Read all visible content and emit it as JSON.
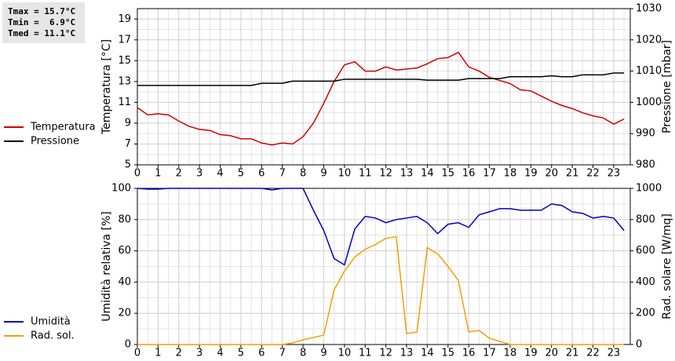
{
  "stats": [
    "Tmax = 15.7°C",
    "Tmin =  6.9°C",
    "Tmed = 11.1°C"
  ],
  "chart_data": [
    {
      "type": "line",
      "ylabel": "Temperatura [°C]",
      "y2label": "Pressione [mbar]",
      "legend": "left",
      "grid": true,
      "x": [
        0,
        0.5,
        1,
        1.5,
        2,
        2.5,
        3,
        3.5,
        4,
        4.5,
        5,
        5.5,
        6,
        6.5,
        7,
        7.5,
        8,
        8.5,
        9,
        9.5,
        10,
        10.5,
        11,
        11.5,
        12,
        12.5,
        13,
        13.5,
        14,
        14.5,
        15,
        15.5,
        16,
        16.5,
        17,
        17.5,
        18,
        18.5,
        19,
        19.5,
        20,
        20.5,
        21,
        21.5,
        22,
        22.5,
        23,
        23.5
      ],
      "xlim": [
        0,
        23.8
      ],
      "xticks": [
        0,
        1,
        2,
        3,
        4,
        5,
        6,
        7,
        8,
        9,
        10,
        11,
        12,
        13,
        14,
        15,
        16,
        17,
        18,
        19,
        20,
        21,
        22,
        23
      ],
      "x_minor_step": 0.5,
      "ylim": [
        5,
        20
      ],
      "yticks": [
        5,
        7,
        9,
        11,
        13,
        15,
        17,
        19
      ],
      "y_minor_step": 1,
      "y2lim": [
        980,
        1030
      ],
      "y2ticks": [
        980,
        990,
        1000,
        1010,
        1020,
        1030
      ],
      "series": [
        {
          "name": "Temperatura",
          "color": "#d40000",
          "values": [
            10.5,
            9.8,
            9.9,
            9.8,
            9.2,
            8.7,
            8.4,
            8.3,
            7.9,
            7.8,
            7.5,
            7.5,
            7.1,
            6.9,
            7.1,
            7.0,
            7.7,
            9.0,
            10.9,
            13.0,
            14.6,
            14.9,
            14.0,
            14.0,
            14.4,
            14.1,
            14.2,
            14.3,
            14.7,
            15.2,
            15.3,
            15.8,
            14.4,
            14.0,
            13.4,
            13.1,
            12.8,
            12.2,
            12.1,
            11.6,
            11.1,
            10.7,
            10.4,
            10.0,
            9.7,
            9.5,
            8.9,
            9.4
          ]
        },
        {
          "name": "Pressione",
          "color": "#000000",
          "axis": "y2",
          "values": [
            1005.4,
            1005.4,
            1005.4,
            1005.4,
            1005.4,
            1005.4,
            1005.4,
            1005.4,
            1005.4,
            1005.4,
            1005.4,
            1005.4,
            1006.1,
            1006.1,
            1006.1,
            1006.8,
            1006.8,
            1006.8,
            1006.8,
            1006.8,
            1007.4,
            1007.4,
            1007.4,
            1007.4,
            1007.4,
            1007.4,
            1007.4,
            1007.4,
            1007.1,
            1007.1,
            1007.1,
            1007.1,
            1007.6,
            1007.6,
            1007.6,
            1007.6,
            1008.2,
            1008.2,
            1008.2,
            1008.2,
            1008.5,
            1008.2,
            1008.2,
            1008.8,
            1008.8,
            1008.8,
            1009.4,
            1009.4
          ]
        }
      ]
    },
    {
      "type": "line",
      "ylabel": "Umidità relativa [%]",
      "y2label": "Rad. solare [W/mq]",
      "legend": "left",
      "grid": true,
      "x": [
        0,
        0.5,
        1,
        1.5,
        2,
        2.5,
        3,
        3.5,
        4,
        4.5,
        5,
        5.5,
        6,
        6.5,
        7,
        7.5,
        8,
        8.5,
        9,
        9.5,
        10,
        10.5,
        11,
        11.5,
        12,
        12.5,
        13,
        13.5,
        14,
        14.5,
        15,
        15.5,
        16,
        16.5,
        17,
        17.5,
        18,
        18.5,
        19,
        19.5,
        20,
        20.5,
        21,
        21.5,
        22,
        22.5,
        23,
        23.5
      ],
      "xlim": [
        0,
        23.8
      ],
      "xticks": [
        0,
        1,
        2,
        3,
        4,
        5,
        6,
        7,
        8,
        9,
        10,
        11,
        12,
        13,
        14,
        15,
        16,
        17,
        18,
        19,
        20,
        21,
        22,
        23
      ],
      "x_minor_step": 0.5,
      "ylim": [
        0,
        100
      ],
      "yticks": [
        0,
        20,
        40,
        60,
        80,
        100
      ],
      "y_minor_step": 10,
      "y2lim": [
        0,
        1000
      ],
      "y2ticks": [
        0,
        200,
        400,
        600,
        800,
        1000
      ],
      "series": [
        {
          "name": "Umidità",
          "color": "#0000c0",
          "values": [
            100,
            99.5,
            99.5,
            100,
            100,
            100,
            100,
            100,
            100,
            100,
            100,
            100,
            100,
            99,
            100,
            100,
            100,
            86,
            73,
            55,
            51,
            74,
            82,
            81,
            78,
            80,
            81,
            82,
            78,
            71,
            77,
            78,
            75,
            83,
            85,
            87,
            87,
            86,
            86,
            86,
            90,
            89,
            85,
            84,
            81,
            82,
            81,
            73
          ]
        },
        {
          "name": "Rad. sol.",
          "color": "#f0a000",
          "axis": "y2",
          "values": [
            0,
            0,
            0,
            0,
            0,
            0,
            0,
            0,
            0,
            0,
            0,
            0,
            0,
            0,
            0,
            10,
            30,
            45,
            60,
            350,
            470,
            560,
            610,
            640,
            680,
            690,
            70,
            80,
            620,
            580,
            500,
            410,
            80,
            90,
            40,
            20,
            0,
            0,
            0,
            0,
            0,
            0,
            0,
            0,
            0,
            0,
            0,
            0
          ]
        }
      ]
    }
  ]
}
